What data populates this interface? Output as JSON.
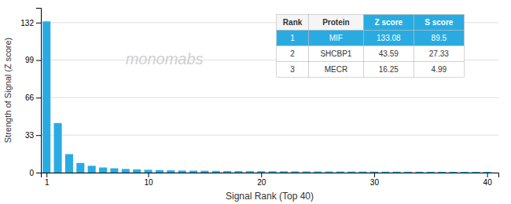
{
  "chart_data": {
    "type": "bar",
    "xlabel": "Signal Rank (Top 40)",
    "ylabel": "Strength of Signal (Z score)",
    "x": [
      1,
      2,
      3,
      4,
      5,
      6,
      7,
      8,
      9,
      10,
      11,
      12,
      13,
      14,
      15,
      16,
      17,
      18,
      19,
      20,
      21,
      22,
      23,
      24,
      25,
      26,
      27,
      28,
      29,
      30,
      31,
      32,
      33,
      34,
      35,
      36,
      37,
      38,
      39,
      40
    ],
    "values": [
      133.08,
      43.59,
      16.25,
      8.5,
      6.0,
      4.5,
      3.8,
      3.2,
      2.8,
      2.5,
      2.2,
      2.0,
      1.8,
      1.7,
      1.6,
      1.5,
      1.4,
      1.35,
      1.3,
      1.25,
      1.2,
      1.15,
      1.1,
      1.05,
      1.02,
      1.0,
      0.98,
      0.95,
      0.92,
      0.9,
      0.88,
      0.86,
      0.84,
      0.82,
      0.8,
      0.78,
      0.76,
      0.74,
      0.72,
      0.7
    ],
    "color": "#29ABE2",
    "xlim": [
      0.5,
      41
    ],
    "xticks": [
      1,
      10,
      20,
      30,
      40
    ],
    "ylim": [
      0,
      145
    ],
    "yticks": [
      0,
      33,
      66,
      99,
      132
    ],
    "grid": true,
    "annotations": [
      "monomabs"
    ],
    "table": {
      "headers": [
        "Rank",
        "Protein",
        "Z score",
        "S score"
      ],
      "rows": [
        [
          "1",
          "MIF",
          "133.08",
          "89.5"
        ],
        [
          "2",
          "SHCBP1",
          "43.59",
          "27.33"
        ],
        [
          "3",
          "MECR",
          "16.25",
          "4.99"
        ]
      ]
    }
  }
}
